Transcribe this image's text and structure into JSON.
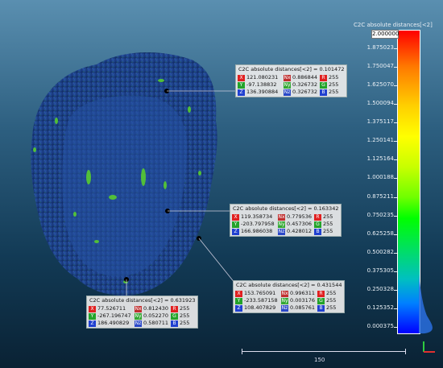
{
  "colorbar": {
    "title": "C2C absolute distances[<2]",
    "max_label": "2.000000",
    "ticks": [
      "1.875023",
      "1.750047",
      "1.625070",
      "1.500094",
      "1.375117",
      "1.250141",
      "1.125164",
      "1.000188",
      "0.875211",
      "0.750235",
      "0.625258",
      "0.500282",
      "0.375305",
      "0.250328",
      "0.125352",
      "0.000375"
    ]
  },
  "labels": [
    {
      "title": "C2C absolute distances[<2] = 0.101472",
      "x": "121.080231",
      "nx": "0.886844",
      "r": "255",
      "y": "-97.138832",
      "ny": "0.326732",
      "g": "255",
      "z": "136.390884",
      "nz": "0.326732",
      "b": "255"
    },
    {
      "title": "C2C absolute distances[<2] = 0.163342",
      "x": "119.358734",
      "nx": "0.779536",
      "r": "255",
      "y": "-203.797958",
      "ny": "0.457306",
      "g": "255",
      "z": "166.986038",
      "nz": "0.428012",
      "b": "255"
    },
    {
      "title": "C2C absolute distances[<2] = 0.431544",
      "x": "153.765091",
      "nx": "0.996311",
      "r": "255",
      "y": "-233.587158",
      "ny": "0.003176",
      "g": "255",
      "z": "108.407829",
      "nz": "0.085761",
      "b": "255"
    },
    {
      "title": "C2C absolute distances[<2] = 0.631923",
      "x": "77.526711",
      "nx": "0.812430",
      "r": "255",
      "y": "-267.196747",
      "ny": "0.052270",
      "g": "255",
      "z": "186.490829",
      "nz": "0.580711",
      "b": "255"
    }
  ],
  "tags": {
    "x": "X",
    "y": "Y",
    "z": "Z",
    "nx": "Nx",
    "ny": "Ny",
    "nz": "Nz",
    "r": "R",
    "g": "G",
    "b": "B"
  },
  "scalebar": {
    "label": "150"
  },
  "colors": {
    "cloud_base": "#1a3f8a",
    "cloud_hot": "#5bd42a"
  }
}
